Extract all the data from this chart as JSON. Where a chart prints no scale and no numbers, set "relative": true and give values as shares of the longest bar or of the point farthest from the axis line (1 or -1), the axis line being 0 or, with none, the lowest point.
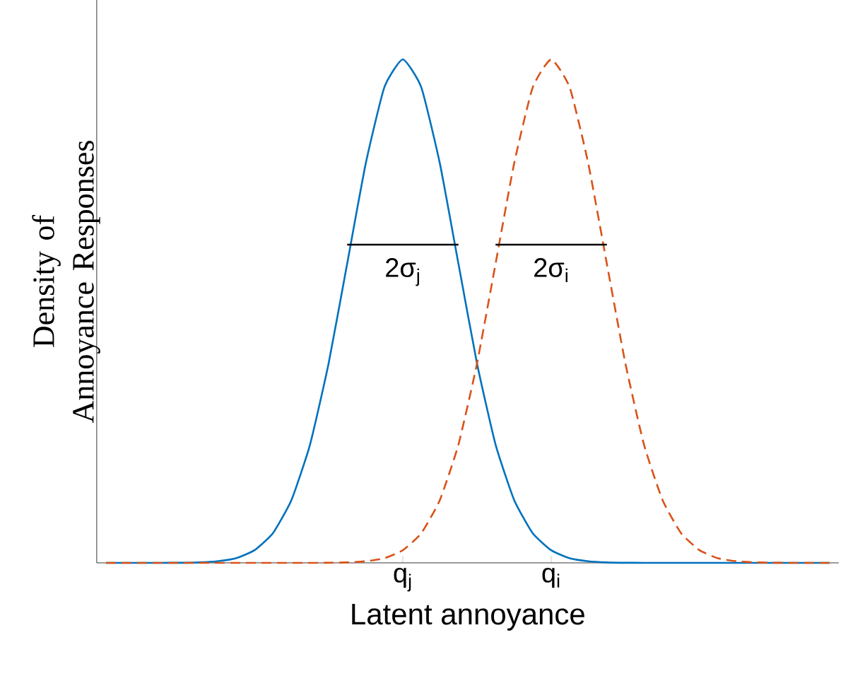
{
  "chart_data": {
    "type": "line",
    "relative": true,
    "xlabel": "Latent annoyance",
    "ylabel": "Density of Annoyance Responses",
    "marker": "none",
    "categories": [
      null,
      null,
      null,
      null,
      null,
      null,
      null,
      null,
      null,
      null,
      null,
      null,
      null,
      null,
      null,
      null,
      "q$_{j}$",
      null,
      null,
      null,
      null,
      null,
      null,
      null,
      "q$_{i}$",
      null,
      null,
      null,
      null,
      null,
      null,
      null,
      null,
      null,
      null,
      null,
      null,
      null,
      null,
      null
    ],
    "series": [
      {
        "color": "#0072bd",
        "line_style": "solid",
        "values": [
          0,
          0,
          0,
          0,
          0.0002,
          0.0009,
          0.0031,
          0.009,
          0.025,
          0.059,
          0.125,
          0.235,
          0.396,
          0.594,
          0.793,
          0.944,
          1,
          0.944,
          0.793,
          0.594,
          0.396,
          0.235,
          0.125,
          0.059,
          0.025,
          0.009,
          0.0031,
          0.0009,
          0.0002,
          0,
          0,
          0,
          0,
          0,
          0,
          0,
          0,
          0,
          0,
          0
        ]
      },
      {
        "color": "#d95319",
        "line_style": "dashed",
        "values": [
          0,
          0,
          0,
          0,
          0,
          0,
          0,
          0,
          0,
          0,
          0,
          0,
          0.0002,
          0.0009,
          0.0031,
          0.009,
          0.025,
          0.059,
          0.125,
          0.235,
          0.396,
          0.594,
          0.793,
          0.944,
          1,
          0.944,
          0.793,
          0.594,
          0.396,
          0.235,
          0.125,
          0.059,
          0.025,
          0.009,
          0.0031,
          0.0009,
          0.0002,
          0,
          0,
          0
        ]
      },
      {
        "color": "#000000",
        "line_style": "solid",
        "values": [
          null,
          null,
          null,
          null,
          null,
          null,
          null,
          null,
          null,
          null,
          null,
          null,
          null,
          0.632,
          0.632,
          0.632,
          0.632,
          0.632,
          0.632,
          0.632,
          null,
          null,
          null,
          null,
          null,
          null,
          null,
          null,
          null,
          null,
          null,
          null,
          null,
          null,
          null,
          null,
          null,
          null,
          null,
          null
        ]
      },
      {
        "color": "#000000",
        "line_style": "solid",
        "values": [
          null,
          null,
          null,
          null,
          null,
          null,
          null,
          null,
          null,
          null,
          null,
          null,
          null,
          null,
          null,
          null,
          null,
          null,
          null,
          null,
          null,
          0.632,
          0.632,
          0.632,
          0.632,
          0.632,
          0.632,
          0.632,
          null,
          null,
          null,
          null,
          null,
          null,
          null,
          null,
          null,
          null,
          null,
          null
        ]
      }
    ],
    "annotations": [
      "2σ$_{j}$",
      "2σ$_{i}$"
    ]
  }
}
